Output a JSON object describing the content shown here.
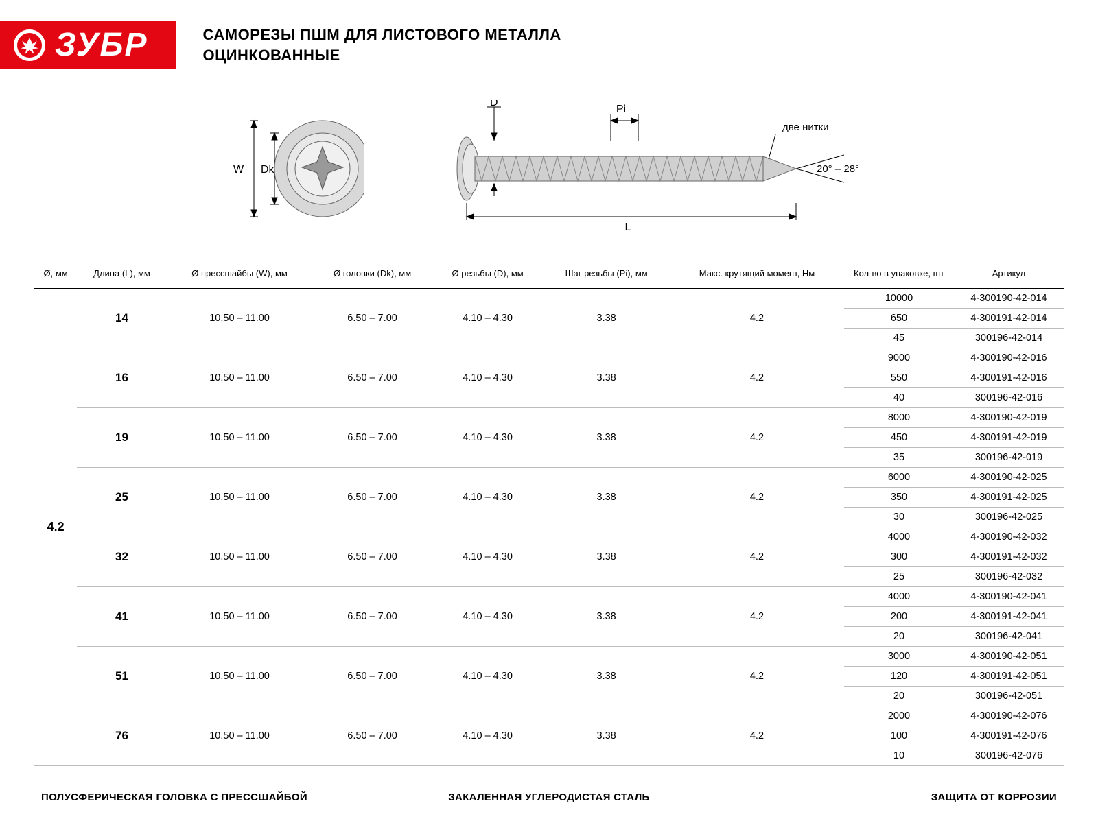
{
  "brand": "ЗУБР",
  "title_line1": "САМОРЕЗЫ ПШМ ДЛЯ ЛИСТОВОГО МЕТАЛЛА",
  "title_line2": "ОЦИНКОВАННЫЕ",
  "diagram": {
    "labels": {
      "W": "W",
      "Dk": "Dk",
      "D": "D",
      "Pi": "Pi",
      "L": "L",
      "threads": "две нитки",
      "angle": "20° – 28°"
    }
  },
  "columns": [
    "Ø, мм",
    "Длина (L), мм",
    "Ø прессшайбы (W), мм",
    "Ø головки (Dk), мм",
    "Ø резьбы (D), мм",
    "Шаг резьбы (Pi), мм",
    "Макс. крутящий момент, Нм",
    "Кол-во в упаковке, шт",
    "Артикул"
  ],
  "diameter": "4.2",
  "common": {
    "press_washer": "10.50 – 11.00",
    "head": "6.50 – 7.00",
    "thread": "4.10 – 4.30",
    "pitch": "3.38",
    "torque": "4.2"
  },
  "groups": [
    {
      "length": "14",
      "rows": [
        {
          "qty": "10000",
          "art": "4-300190-42-014"
        },
        {
          "qty": "650",
          "art": "4-300191-42-014"
        },
        {
          "qty": "45",
          "art": "300196-42-014"
        }
      ]
    },
    {
      "length": "16",
      "rows": [
        {
          "qty": "9000",
          "art": "4-300190-42-016"
        },
        {
          "qty": "550",
          "art": "4-300191-42-016"
        },
        {
          "qty": "40",
          "art": "300196-42-016"
        }
      ]
    },
    {
      "length": "19",
      "rows": [
        {
          "qty": "8000",
          "art": "4-300190-42-019"
        },
        {
          "qty": "450",
          "art": "4-300191-42-019"
        },
        {
          "qty": "35",
          "art": "300196-42-019"
        }
      ]
    },
    {
      "length": "25",
      "rows": [
        {
          "qty": "6000",
          "art": "4-300190-42-025"
        },
        {
          "qty": "350",
          "art": "4-300191-42-025"
        },
        {
          "qty": "30",
          "art": "300196-42-025"
        }
      ]
    },
    {
      "length": "32",
      "rows": [
        {
          "qty": "4000",
          "art": "4-300190-42-032"
        },
        {
          "qty": "300",
          "art": "4-300191-42-032"
        },
        {
          "qty": "25",
          "art": "300196-42-032"
        }
      ]
    },
    {
      "length": "41",
      "rows": [
        {
          "qty": "4000",
          "art": "4-300190-42-041"
        },
        {
          "qty": "200",
          "art": "4-300191-42-041"
        },
        {
          "qty": "20",
          "art": "300196-42-041"
        }
      ]
    },
    {
      "length": "51",
      "rows": [
        {
          "qty": "3000",
          "art": "4-300190-42-051"
        },
        {
          "qty": "120",
          "art": "4-300191-42-051"
        },
        {
          "qty": "20",
          "art": "300196-42-051"
        }
      ]
    },
    {
      "length": "76",
      "rows": [
        {
          "qty": "2000",
          "art": "4-300190-42-076"
        },
        {
          "qty": "100",
          "art": "4-300191-42-076"
        },
        {
          "qty": "10",
          "art": "300196-42-076"
        }
      ]
    }
  ],
  "features": [
    "ПОЛУСФЕРИЧЕСКАЯ ГОЛОВКА С ПРЕССШАЙБОЙ",
    "ЗАКАЛЕННАЯ УГЛЕРОДИСТАЯ СТАЛЬ",
    "ЗАЩИТА ОТ КОРРОЗИИ"
  ],
  "colors": {
    "brand_red": "#e30613",
    "rule_gray": "#bdbdbd",
    "text": "#000000"
  }
}
